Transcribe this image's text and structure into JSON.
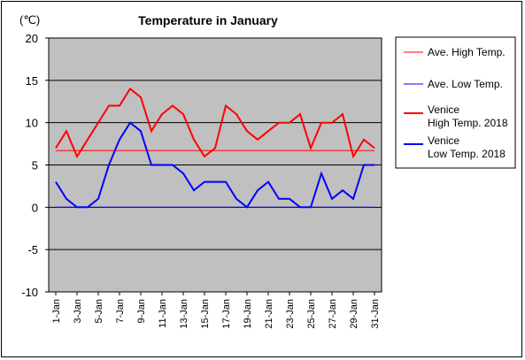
{
  "chart_data": {
    "type": "line",
    "title": "Temperature in January",
    "unit_label": "(℃)",
    "ylim": [
      -10,
      20
    ],
    "yticks": [
      "20",
      "15",
      "10",
      "5",
      "0",
      "-5",
      "-10"
    ],
    "x_labels": [
      "1-Jan",
      "3-Jan",
      "5-Jan",
      "7-Jan",
      "9-Jan",
      "11-Jan",
      "13-Jan",
      "15-Jan",
      "17-Jan",
      "19-Jan",
      "21-Jan",
      "23-Jan",
      "25-Jan",
      "27-Jan",
      "29-Jan",
      "31-Jan"
    ],
    "days": [
      1,
      2,
      3,
      4,
      5,
      6,
      7,
      8,
      9,
      10,
      11,
      12,
      13,
      14,
      15,
      16,
      17,
      18,
      19,
      20,
      21,
      22,
      23,
      24,
      25,
      26,
      27,
      28,
      29,
      30,
      31
    ],
    "grid": true,
    "legend_position": "right",
    "series": [
      {
        "name": "Ave. High Temp.",
        "color": "#ff0000",
        "width": 1,
        "values": [
          6.7,
          6.7,
          6.7,
          6.7,
          6.7,
          6.7,
          6.7,
          6.7,
          6.7,
          6.7,
          6.7,
          6.7,
          6.7,
          6.7,
          6.7,
          6.7,
          6.7,
          6.7,
          6.7,
          6.7,
          6.7,
          6.7,
          6.7,
          6.7,
          6.7,
          6.7,
          6.7,
          6.7,
          6.7,
          6.7,
          6.7
        ]
      },
      {
        "name": "Ave. Low Temp.",
        "color": "#0000ff",
        "width": 1,
        "values": [
          0,
          0,
          0,
          0,
          0,
          0,
          0,
          0,
          0,
          0,
          0,
          0,
          0,
          0,
          0,
          0,
          0,
          0,
          0,
          0,
          0,
          0,
          0,
          0,
          0,
          0,
          0,
          0,
          0,
          0,
          0
        ]
      },
      {
        "name": "Venice\nHigh Temp. 2018",
        "color": "#ff0000",
        "width": 2,
        "values": [
          7,
          9,
          6,
          8,
          10,
          12,
          12,
          14,
          13,
          9,
          11,
          12,
          11,
          8,
          6,
          7,
          12,
          11,
          9,
          8,
          9,
          10,
          10,
          11,
          7,
          10,
          10,
          11,
          6,
          8,
          7
        ]
      },
      {
        "name": "Venice\nLow Temp. 2018",
        "color": "#0000ff",
        "width": 2,
        "values": [
          3,
          1,
          0,
          0,
          1,
          5,
          8,
          10,
          9,
          5,
          5,
          5,
          4,
          2,
          3,
          3,
          3,
          1,
          0,
          2,
          3,
          1,
          1,
          0,
          0,
          4,
          1,
          2,
          1,
          5,
          5
        ]
      }
    ]
  }
}
